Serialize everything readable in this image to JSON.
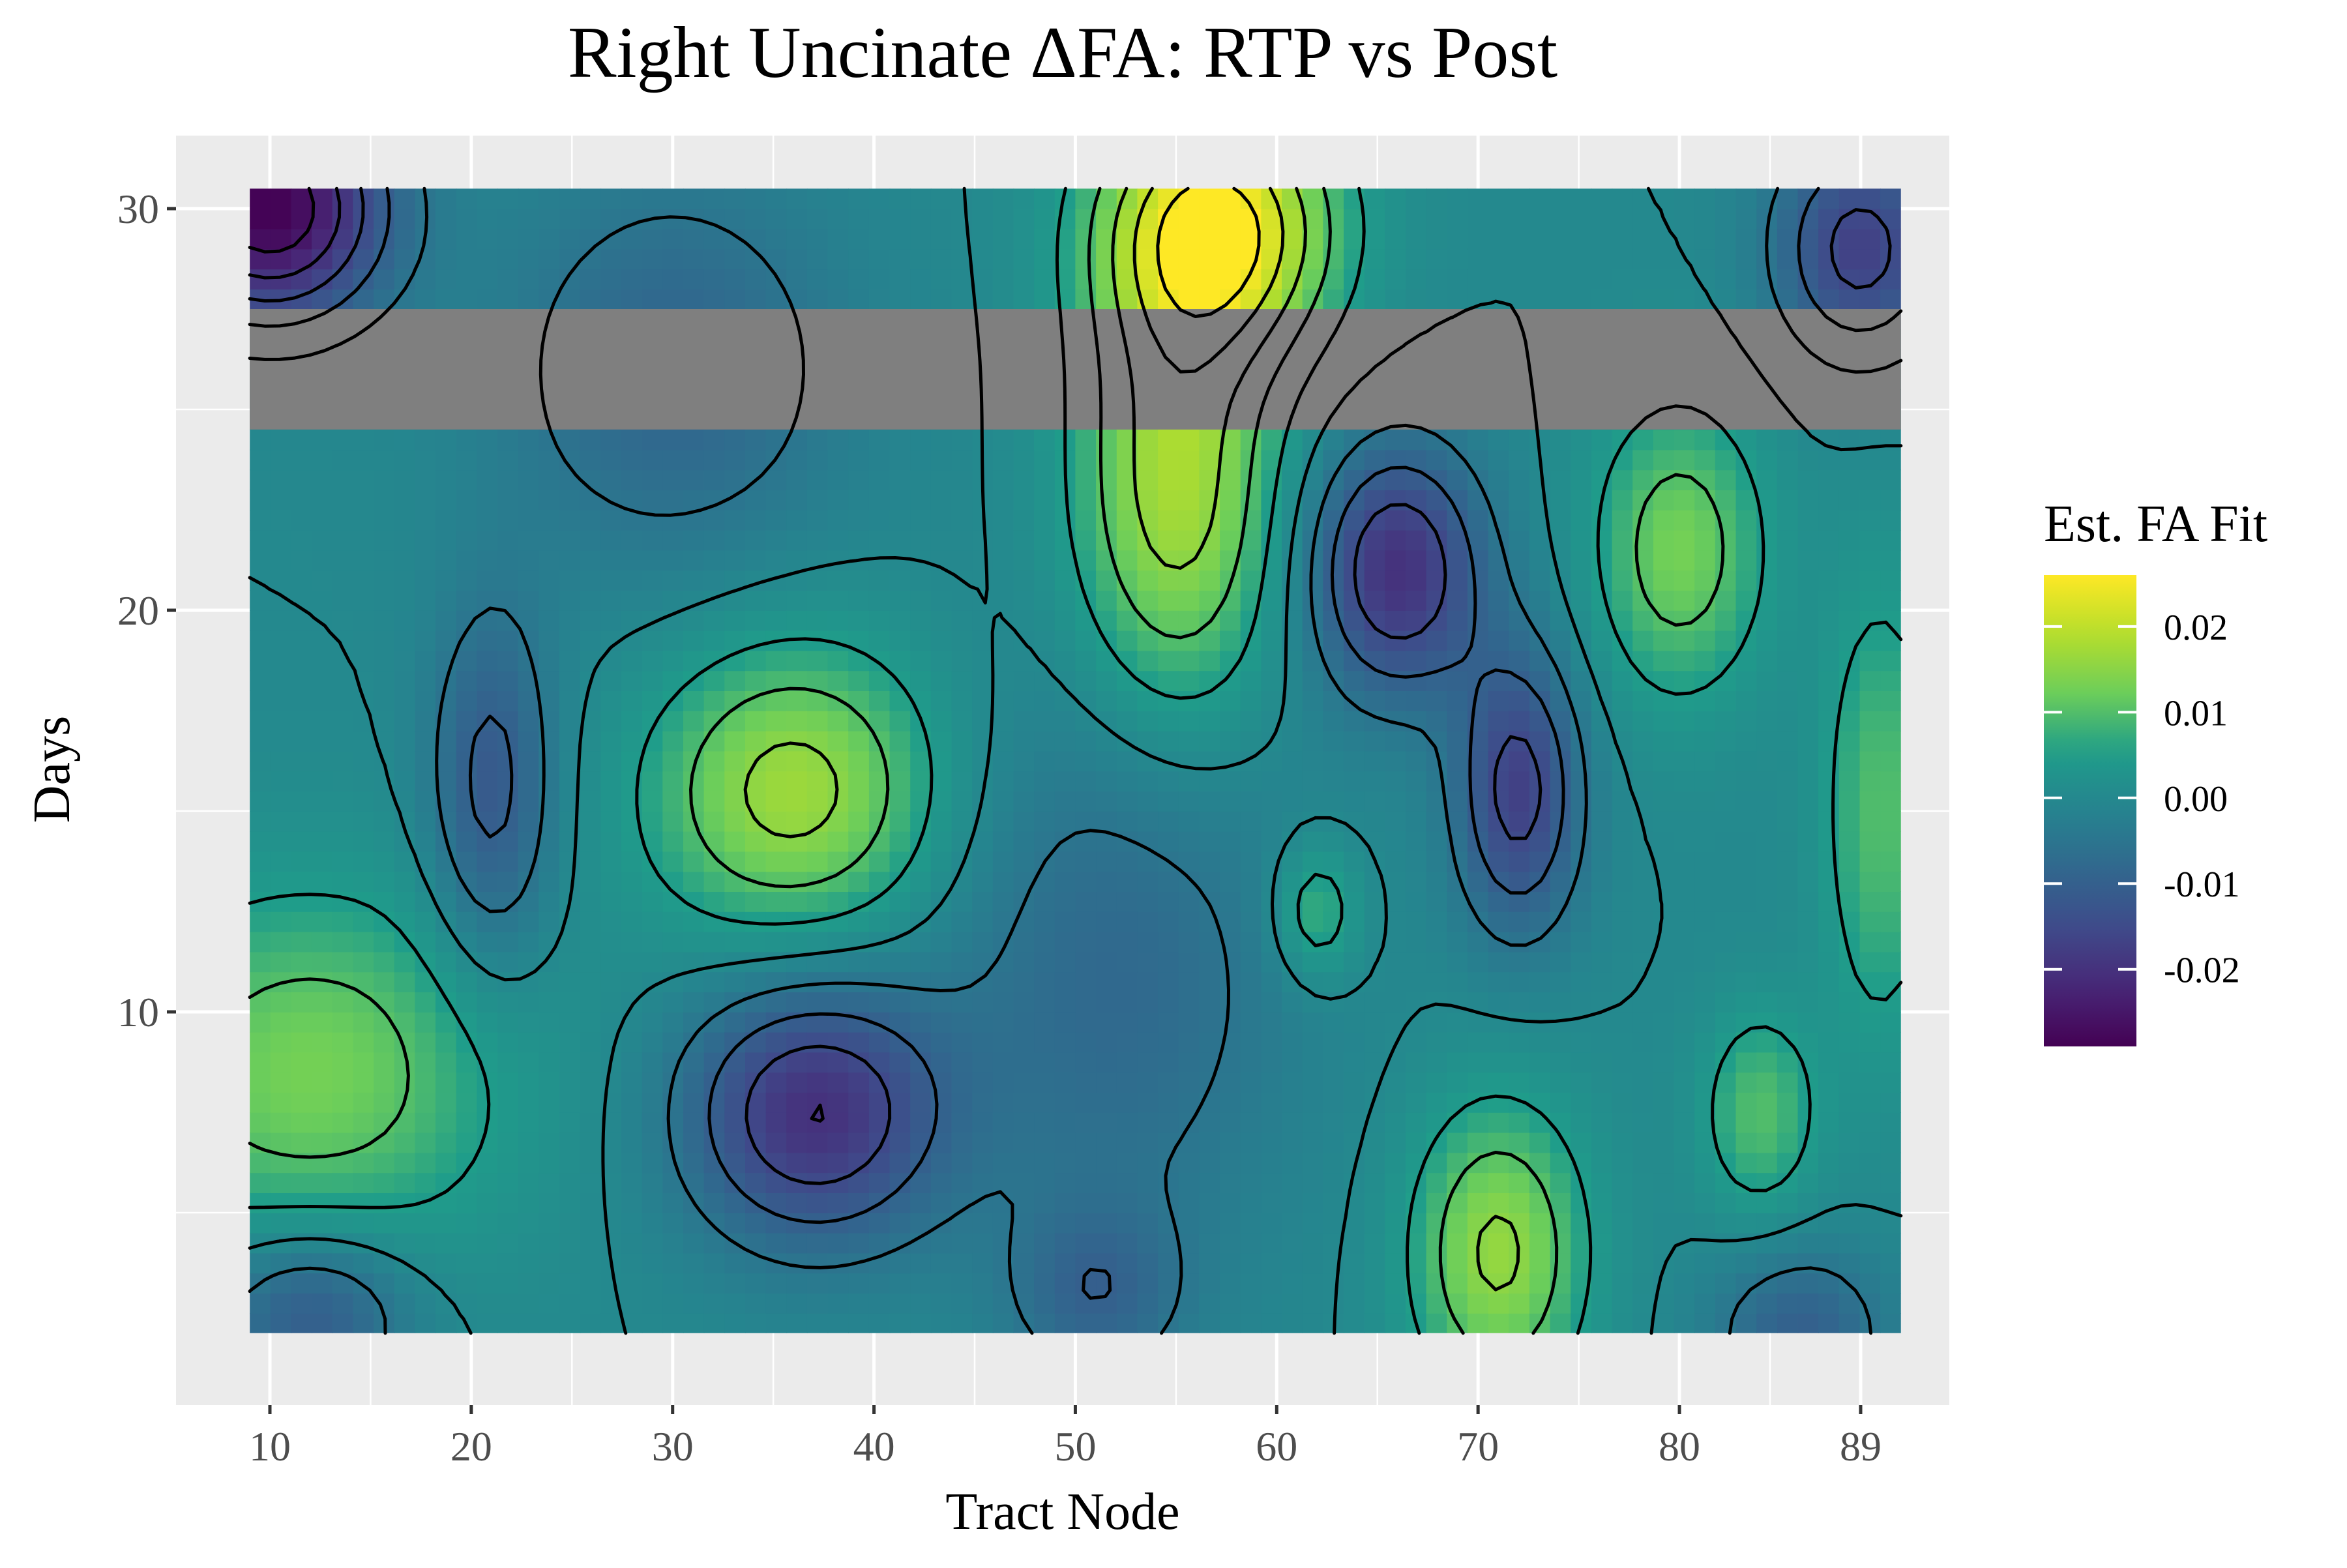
{
  "chart_data": {
    "type": "heatmap",
    "title": "Right Uncinate ΔFA: RTP vs Post",
    "xlabel": "Tract Node",
    "ylabel": "Days",
    "x_ticks": [
      10,
      20,
      30,
      40,
      50,
      60,
      70,
      80,
      89
    ],
    "y_ticks": [
      10,
      20,
      30
    ],
    "xlim": [
      9,
      91
    ],
    "ylim": [
      2,
      30.5
    ],
    "grid": true,
    "legend": {
      "title": "Est. FA Fit",
      "position": "right",
      "ticks": [
        0.02,
        0.01,
        0.0,
        -0.01,
        -0.02
      ],
      "tick_labels": [
        "0.02",
        "0.01",
        "0.00",
        "-0.01",
        "-0.02"
      ],
      "range": [
        -0.029,
        0.026
      ]
    },
    "colormap": "viridis",
    "missing_band": {
      "y_from": 24.5,
      "y_to": 27.5,
      "color": "#7f7f7f"
    },
    "surface": {
      "base": 0.0,
      "features": [
        {
          "x": 36,
          "y": 15.5,
          "value": 0.017,
          "sx": 5,
          "sy": 2.6
        },
        {
          "x": 37,
          "y": 7.5,
          "value": -0.02,
          "sx": 4.5,
          "sy": 2.3
        },
        {
          "x": 21,
          "y": 15.5,
          "value": -0.012,
          "sx": 2.2,
          "sy": 3.2
        },
        {
          "x": 12,
          "y": 8.5,
          "value": 0.013,
          "sx": 7,
          "sy": 3.2
        },
        {
          "x": 66,
          "y": 21,
          "value": -0.02,
          "sx": 3,
          "sy": 2.2
        },
        {
          "x": 72,
          "y": 15.5,
          "value": -0.017,
          "sx": 2.2,
          "sy": 2.5
        },
        {
          "x": 80,
          "y": 21.5,
          "value": 0.013,
          "sx": 3,
          "sy": 2.6
        },
        {
          "x": 84,
          "y": 7.5,
          "value": 0.01,
          "sx": 2,
          "sy": 1.8
        },
        {
          "x": 71,
          "y": 4,
          "value": 0.016,
          "sx": 3,
          "sy": 2.6
        },
        {
          "x": 55,
          "y": 23,
          "value": 0.018,
          "sx": 3.5,
          "sy": 4
        },
        {
          "x": 57,
          "y": 29.5,
          "value": 0.026,
          "sx": 4,
          "sy": 2.2
        },
        {
          "x": 10,
          "y": 30,
          "value": -0.029,
          "sx": 4,
          "sy": 2
        },
        {
          "x": 89,
          "y": 29,
          "value": -0.017,
          "sx": 3,
          "sy": 2
        },
        {
          "x": 30,
          "y": 26,
          "value": -0.009,
          "sx": 6,
          "sy": 3.5
        },
        {
          "x": 62,
          "y": 12.5,
          "value": 0.009,
          "sx": 1.5,
          "sy": 1.2
        },
        {
          "x": 12,
          "y": 2.5,
          "value": -0.012,
          "sx": 3.5,
          "sy": 1.5
        },
        {
          "x": 51,
          "y": 3,
          "value": -0.008,
          "sx": 3,
          "sy": 1.5
        },
        {
          "x": 90,
          "y": 15,
          "value": 0.01,
          "sx": 2,
          "sy": 4
        },
        {
          "x": 52,
          "y": 11,
          "value": -0.008,
          "sx": 6,
          "sy": 5
        },
        {
          "x": 86,
          "y": 2,
          "value": -0.01,
          "sx": 3,
          "sy": 1.5
        }
      ]
    }
  }
}
